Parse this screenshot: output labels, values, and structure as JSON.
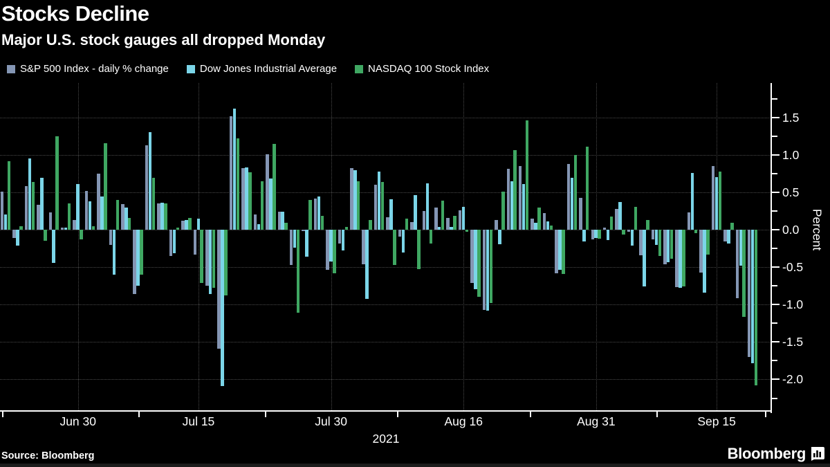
{
  "header": {
    "title": "Stocks Decline",
    "subtitle": "Major U.S. stock gauges all dropped Monday"
  },
  "footer": {
    "source": "Source: Bloomberg",
    "logo_text": "Bloomberg"
  },
  "chart_data": {
    "type": "bar",
    "title": "Stocks Decline",
    "subtitle": "Major U.S. stock gauges all dropped Monday",
    "ylabel": "Percent",
    "year_label": "2021",
    "grid": "dotted",
    "legend_position": "top",
    "background": "#000000",
    "ylim": [
      -2.43,
      1.96
    ],
    "yticks": [
      1.5,
      1.0,
      0.5,
      0.0,
      -0.5,
      -1.0,
      -1.5,
      -2.0
    ],
    "ytick_labels": [
      "1.5",
      "1.0",
      "0.5",
      "0.0",
      "-0.5",
      "-1.0",
      "-1.5",
      "-2.0"
    ],
    "x_gridlines": [
      {
        "label": "Jun 30",
        "day": 6
      },
      {
        "label": "Jul 15",
        "day": 16
      },
      {
        "label": "Jul 30",
        "day": 27
      },
      {
        "label": "Aug 16",
        "day": 38
      },
      {
        "label": "Aug 31",
        "day": 49
      },
      {
        "label": "Sep 15",
        "day": 59
      }
    ],
    "x": [
      "Jun 22",
      "Jun 23",
      "Jun 24",
      "Jun 25",
      "Jun 28",
      "Jun 29",
      "Jun 30",
      "Jul 1",
      "Jul 2",
      "Jul 6",
      "Jul 7",
      "Jul 8",
      "Jul 9",
      "Jul 12",
      "Jul 13",
      "Jul 14",
      "Jul 15",
      "Jul 16",
      "Jul 19",
      "Jul 20",
      "Jul 21",
      "Jul 22",
      "Jul 23",
      "Jul 26",
      "Jul 27",
      "Jul 28",
      "Jul 29",
      "Jul 30",
      "Aug 2",
      "Aug 3",
      "Aug 4",
      "Aug 5",
      "Aug 6",
      "Aug 9",
      "Aug 10",
      "Aug 11",
      "Aug 12",
      "Aug 13",
      "Aug 16",
      "Aug 17",
      "Aug 18",
      "Aug 19",
      "Aug 20",
      "Aug 23",
      "Aug 24",
      "Aug 25",
      "Aug 26",
      "Aug 27",
      "Aug 30",
      "Aug 31",
      "Sep 1",
      "Sep 2",
      "Sep 3",
      "Sep 7",
      "Sep 8",
      "Sep 9",
      "Sep 10",
      "Sep 13",
      "Sep 14",
      "Sep 15",
      "Sep 16",
      "Sep 17",
      "Sep 20"
    ],
    "series": [
      {
        "name": "S&P 500 Index - daily % change",
        "color": "#8496B4",
        "values": [
          0.51,
          -0.11,
          0.58,
          0.33,
          0.23,
          0.03,
          0.13,
          0.52,
          0.75,
          -0.2,
          0.34,
          -0.86,
          1.13,
          0.35,
          -0.35,
          0.12,
          -0.33,
          -0.75,
          -1.59,
          1.52,
          0.82,
          0.2,
          1.01,
          0.24,
          -0.47,
          -0.02,
          0.42,
          -0.54,
          -0.18,
          0.82,
          -0.46,
          0.6,
          0.17,
          -0.09,
          0.1,
          0.25,
          0.3,
          0.16,
          0.26,
          -0.71,
          -1.07,
          0.13,
          0.81,
          0.85,
          0.15,
          0.22,
          -0.58,
          0.88,
          0.43,
          -0.13,
          0.03,
          0.28,
          -0.03,
          -0.34,
          -0.13,
          -0.46,
          -0.77,
          0.23,
          -0.57,
          0.85,
          -0.16,
          -0.91,
          -1.7
        ]
      },
      {
        "name": "Dow Jones Industrial Average",
        "color": "#7BD5E8",
        "values": [
          0.2,
          -0.21,
          0.95,
          0.69,
          -0.44,
          0.03,
          0.61,
          0.38,
          0.44,
          -0.6,
          0.3,
          -0.75,
          1.3,
          0.36,
          -0.31,
          0.13,
          0.15,
          -0.86,
          -2.09,
          1.62,
          0.83,
          0.07,
          0.68,
          0.24,
          -0.24,
          -0.36,
          0.44,
          -0.42,
          -0.28,
          0.8,
          -0.92,
          0.78,
          0.41,
          -0.3,
          0.46,
          0.62,
          0.04,
          0.04,
          0.31,
          -0.79,
          -1.08,
          -0.19,
          0.65,
          0.61,
          0.09,
          0.11,
          -0.54,
          0.69,
          -0.16,
          -0.11,
          -0.14,
          0.37,
          -0.21,
          -0.76,
          -0.2,
          -0.43,
          -0.78,
          0.76,
          -0.84,
          0.7,
          -0.18,
          -0.48,
          -1.78
        ]
      },
      {
        "name": "NASDAQ 100 Stock Index",
        "color": "#3FA762",
        "values": [
          0.92,
          0.05,
          0.64,
          -0.15,
          1.25,
          0.35,
          -0.13,
          0.05,
          1.16,
          0.4,
          0.16,
          -0.6,
          0.69,
          0.35,
          0.03,
          0.16,
          -0.71,
          -0.78,
          -0.88,
          1.22,
          0.77,
          0.65,
          1.15,
          0.09,
          -1.11,
          0.4,
          0.19,
          -0.58,
          0.04,
          0.65,
          0.13,
          0.64,
          -0.47,
          0.15,
          -0.53,
          -0.18,
          0.39,
          0.19,
          -0.03,
          -0.9,
          -0.98,
          0.51,
          1.06,
          1.46,
          0.3,
          0.06,
          -0.59,
          1.0,
          1.11,
          -0.12,
          0.18,
          -0.06,
          0.31,
          0.13,
          -0.35,
          -0.39,
          -0.76,
          -0.05,
          -0.33,
          0.78,
          0.09,
          -1.16,
          -2.08
        ]
      }
    ]
  }
}
